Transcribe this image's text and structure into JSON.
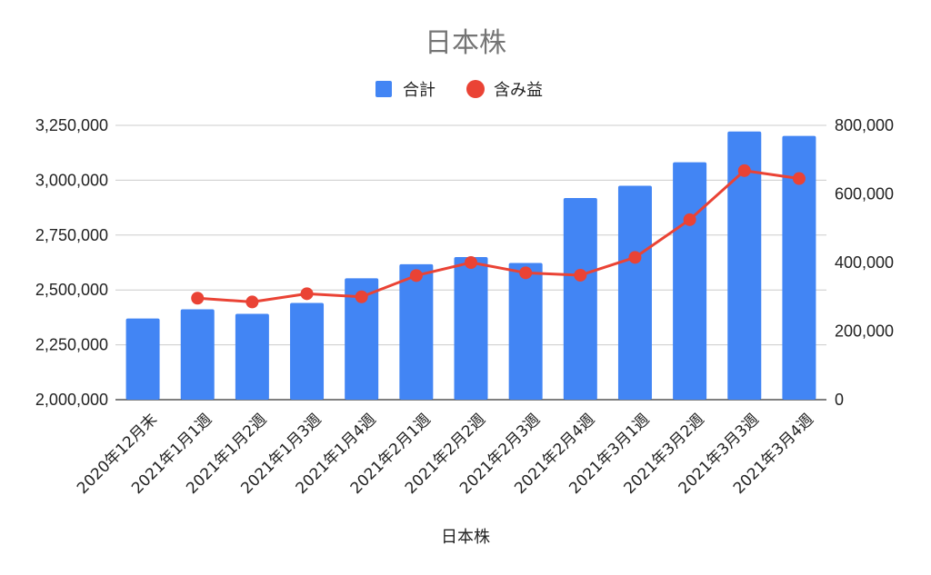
{
  "chart_data": {
    "type": "bar",
    "title": "日本株",
    "xlabel": "日本株",
    "ylabel": "",
    "y2label": "",
    "categories": [
      "2020年12月末",
      "2021年1月1週",
      "2021年1月2週",
      "2021年1月3週",
      "2021年1月4週",
      "2021年2月1週",
      "2021年2月2週",
      "2021年2月3週",
      "2021年2月4週",
      "2021年3月1週",
      "2021年3月2週",
      "2021年3月3週",
      "2021年3月4週"
    ],
    "series": [
      {
        "name": "合計",
        "type": "bar",
        "axis": "left",
        "color": "#4285f4",
        "values": [
          2370000,
          2412000,
          2391000,
          2441000,
          2553000,
          2617000,
          2650000,
          2623000,
          2919000,
          2975000,
          3082000,
          3222000,
          3202000
        ]
      },
      {
        "name": "含み益",
        "type": "line",
        "axis": "right",
        "color": "#ea4335",
        "values": [
          null,
          296000,
          285000,
          309000,
          300000,
          362000,
          400000,
          370000,
          363000,
          415000,
          525000,
          668000,
          645000
        ]
      }
    ],
    "ylim": [
      2000000,
      3250000
    ],
    "yticks": [
      "2,000,000",
      "2,250,000",
      "2,500,000",
      "2,750,000",
      "3,000,000",
      "3,250,000"
    ],
    "y2lim": [
      0,
      800000
    ],
    "y2ticks": [
      "0",
      "200,000",
      "400,000",
      "600,000",
      "800,000"
    ],
    "grid": true,
    "legend": "top"
  }
}
